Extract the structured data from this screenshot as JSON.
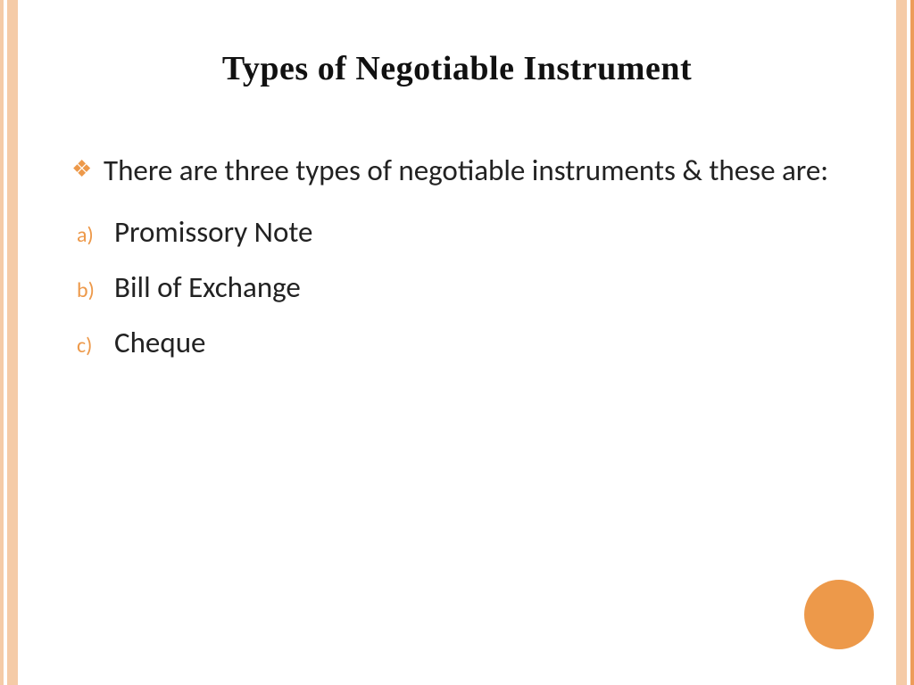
{
  "slide": {
    "title": "Types of Negotiable  Instrument",
    "intro": "There are three types of negotiable instruments & these are:",
    "items": [
      {
        "marker": "a)",
        "text": "Promissory Note"
      },
      {
        "marker": "b)",
        "text": "Bill of Exchange"
      },
      {
        "marker": "c)",
        "text": "Cheque"
      }
    ],
    "bullet_glyph": "❖"
  },
  "style": {
    "accent_color": "#ed994a",
    "border_light": "#f5cba7",
    "border_dark": "#ed9c5a",
    "background": "#ffffff",
    "title_color": "#111111",
    "body_color": "#222222",
    "title_font": "Georgia, serif",
    "body_font": "Calibri, sans-serif",
    "title_fontsize": 38,
    "body_fontsize": 33,
    "marker_fontsize": 24,
    "circle_diameter": 78
  }
}
